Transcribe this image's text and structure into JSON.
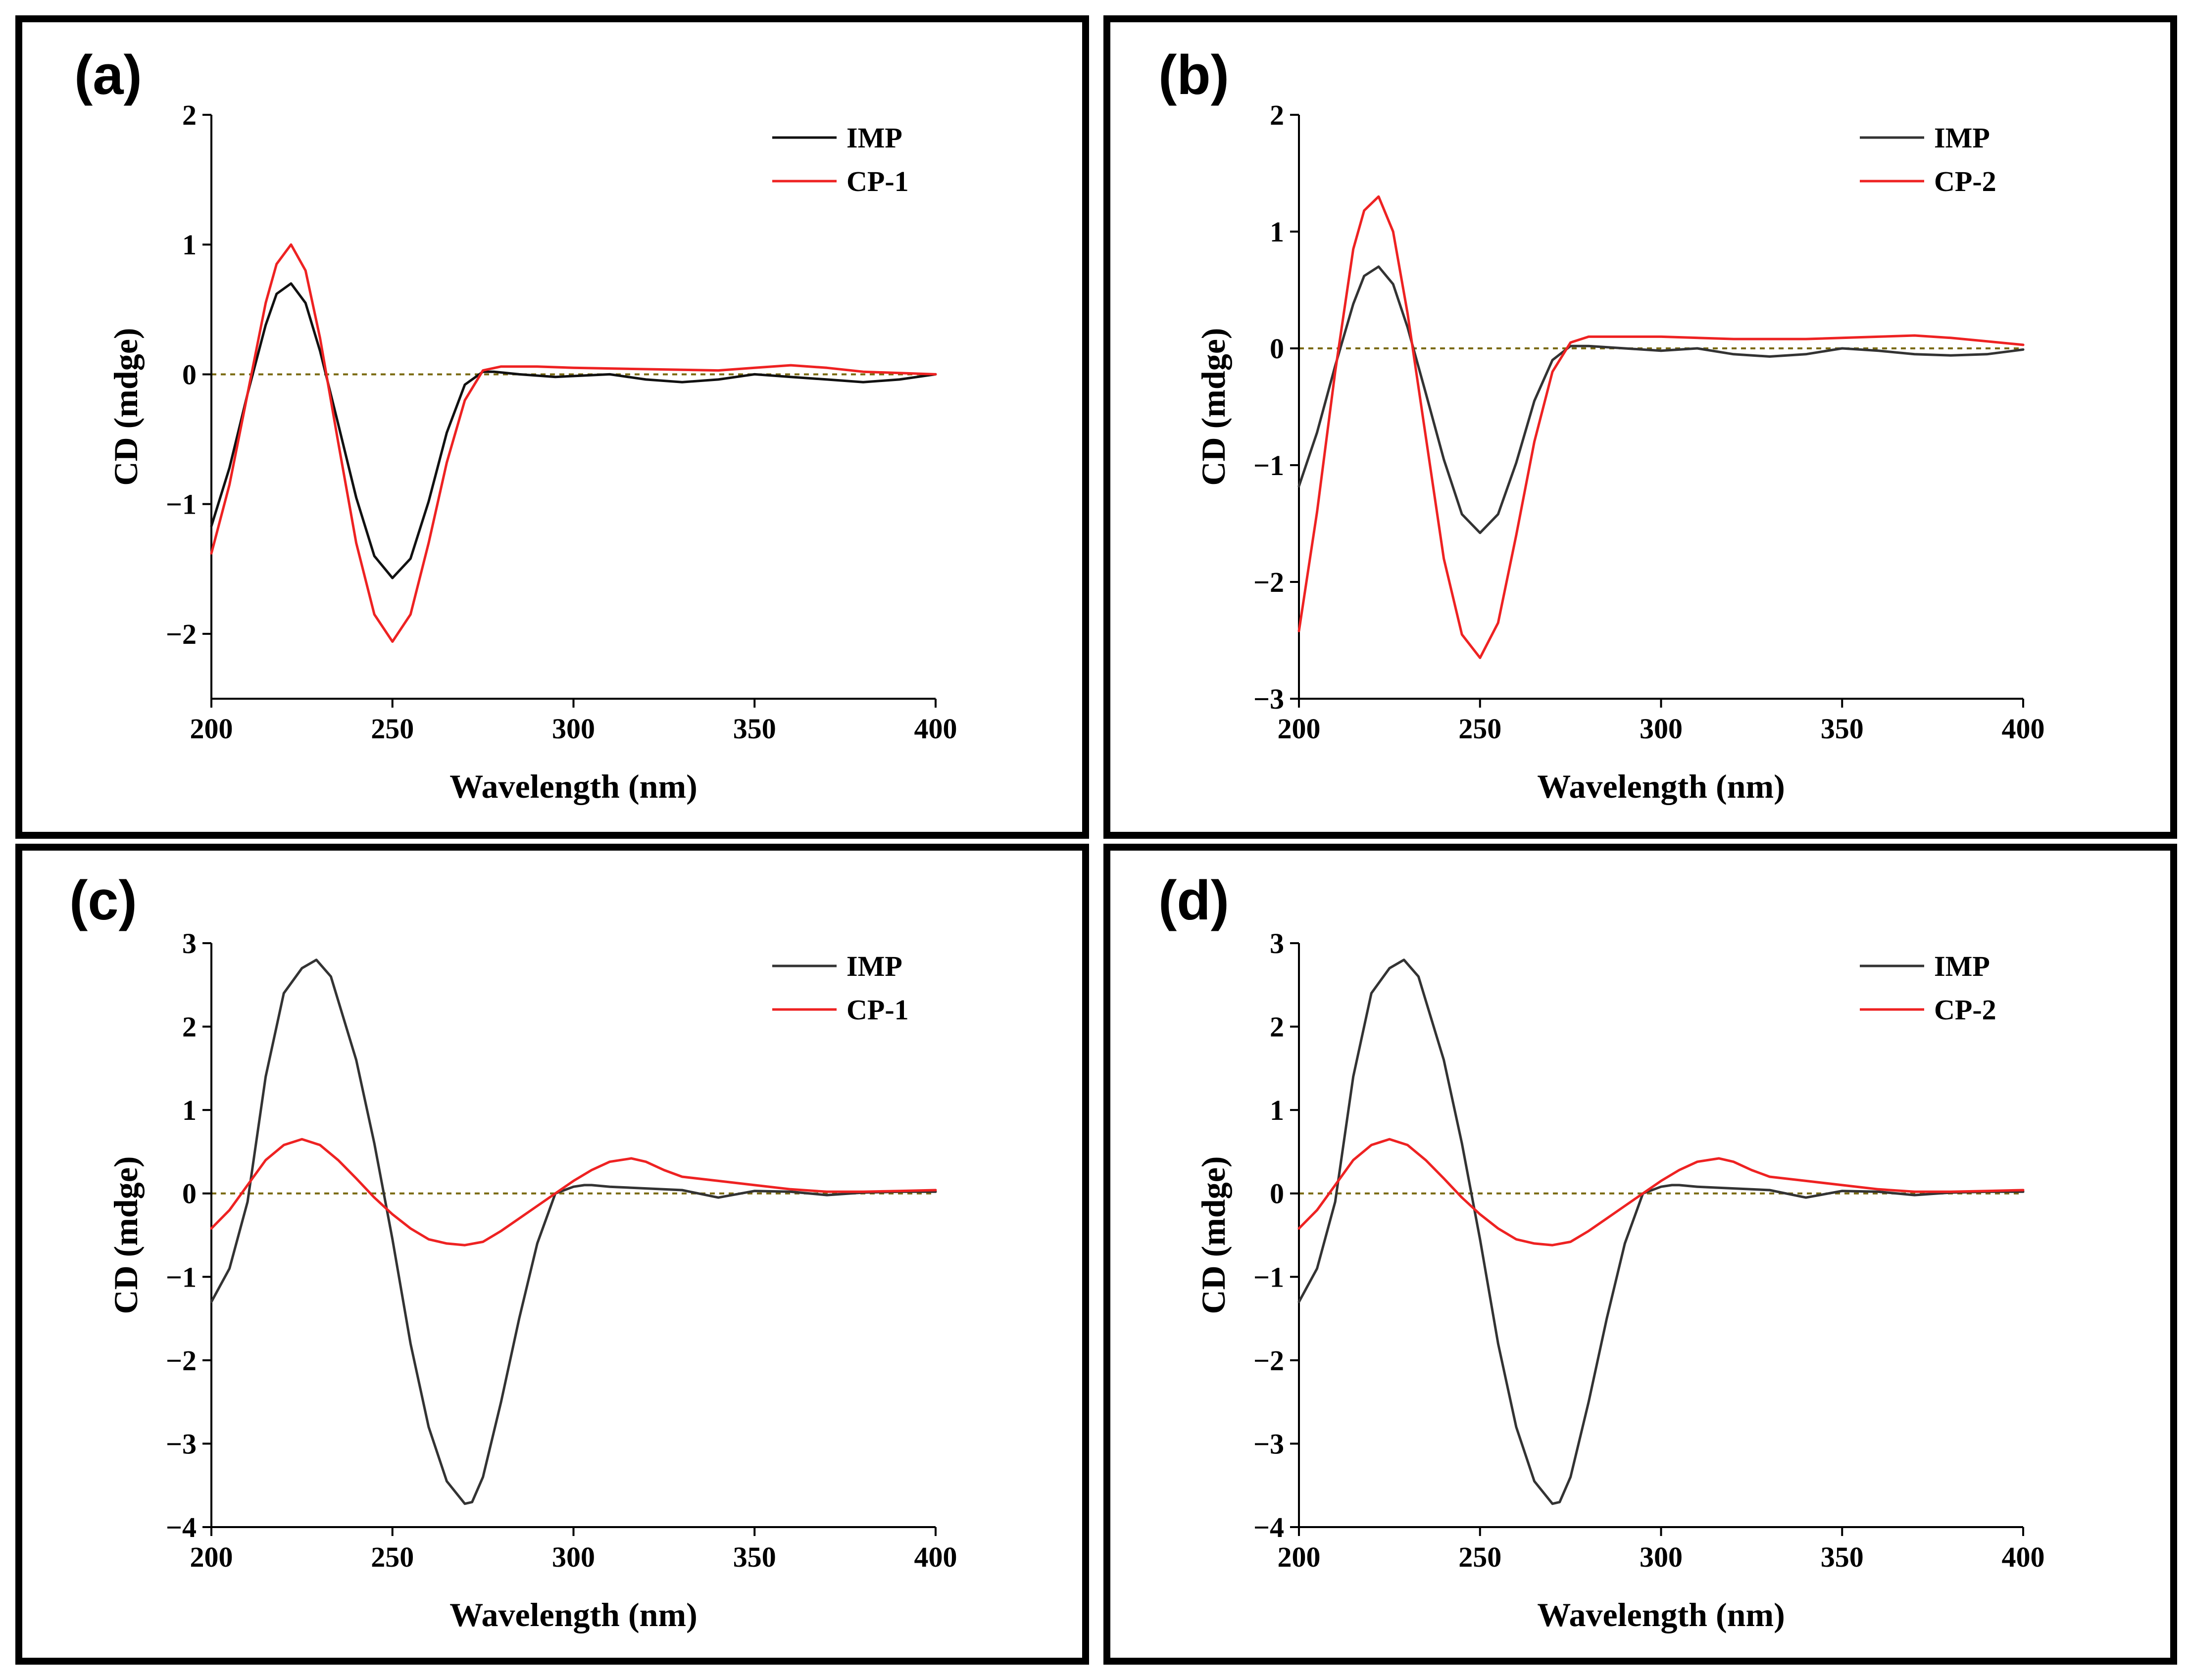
{
  "chart_data": [
    {
      "panel": "(a)",
      "type": "line",
      "xlabel": "Wavelength (nm)",
      "ylabel": "CD (mdge)",
      "xlim": [
        200,
        400
      ],
      "ylim": [
        -2.5,
        2
      ],
      "xticks": [
        "200",
        "250",
        "300",
        "350",
        "400"
      ],
      "yticks": [
        "2",
        "1",
        "0",
        "−1",
        "−2"
      ],
      "ytick_values": [
        2,
        1,
        0,
        -1,
        -2
      ],
      "xtick_values": [
        200,
        250,
        300,
        350,
        400
      ],
      "legend_position": "top-right",
      "reference_line": 0,
      "series": [
        {
          "name": "IMP",
          "color": "#111111",
          "x": [
            200,
            205,
            210,
            215,
            218,
            222,
            226,
            230,
            235,
            240,
            245,
            250,
            255,
            260,
            265,
            270,
            275,
            278,
            285,
            295,
            310,
            320,
            330,
            340,
            350,
            360,
            370,
            380,
            390,
            400
          ],
          "y": [
            -1.17,
            -0.72,
            -0.15,
            0.38,
            0.62,
            0.7,
            0.55,
            0.18,
            -0.38,
            -0.95,
            -1.4,
            -1.57,
            -1.42,
            -0.98,
            -0.45,
            -0.08,
            0.02,
            0.02,
            0.0,
            -0.02,
            0.0,
            -0.04,
            -0.06,
            -0.04,
            0.0,
            -0.02,
            -0.04,
            -0.06,
            -0.04,
            0.0
          ]
        },
        {
          "name": "CP-1",
          "color": "#ee2222",
          "x": [
            200,
            205,
            210,
            215,
            218,
            222,
            226,
            230,
            235,
            240,
            245,
            250,
            255,
            260,
            265,
            270,
            275,
            280,
            290,
            300,
            320,
            340,
            350,
            360,
            370,
            380,
            390,
            400
          ],
          "y": [
            -1.38,
            -0.85,
            -0.15,
            0.55,
            0.85,
            1.0,
            0.8,
            0.28,
            -0.52,
            -1.3,
            -1.85,
            -2.06,
            -1.85,
            -1.3,
            -0.68,
            -0.2,
            0.03,
            0.06,
            0.06,
            0.05,
            0.04,
            0.03,
            0.05,
            0.07,
            0.05,
            0.02,
            0.01,
            0.0
          ]
        }
      ]
    },
    {
      "panel": "(b)",
      "type": "line",
      "xlabel": "Wavelength (nm)",
      "ylabel": "CD (mdge)",
      "xlim": [
        200,
        400
      ],
      "ylim": [
        -3,
        2
      ],
      "xticks": [
        "200",
        "250",
        "300",
        "350",
        "400"
      ],
      "yticks": [
        "2",
        "1",
        "0",
        "−1",
        "−2",
        "−3"
      ],
      "ytick_values": [
        2,
        1,
        0,
        -1,
        -2,
        -3
      ],
      "xtick_values": [
        200,
        250,
        300,
        350,
        400
      ],
      "legend_position": "top-right",
      "reference_line": 0,
      "series": [
        {
          "name": "IMP",
          "color": "#333333",
          "x": [
            200,
            205,
            210,
            215,
            218,
            222,
            226,
            230,
            235,
            240,
            245,
            250,
            255,
            260,
            265,
            270,
            275,
            280,
            290,
            300,
            310,
            320,
            330,
            340,
            350,
            360,
            370,
            380,
            390,
            400
          ],
          "y": [
            -1.18,
            -0.72,
            -0.15,
            0.38,
            0.62,
            0.7,
            0.55,
            0.18,
            -0.38,
            -0.95,
            -1.42,
            -1.58,
            -1.42,
            -0.98,
            -0.45,
            -0.1,
            0.02,
            0.02,
            0.0,
            -0.02,
            0.0,
            -0.05,
            -0.07,
            -0.05,
            0.0,
            -0.02,
            -0.05,
            -0.06,
            -0.05,
            -0.01
          ]
        },
        {
          "name": "CP-2",
          "color": "#ee2222",
          "x": [
            200,
            205,
            210,
            215,
            218,
            222,
            226,
            230,
            235,
            240,
            245,
            250,
            255,
            260,
            265,
            270,
            275,
            280,
            290,
            300,
            320,
            340,
            350,
            360,
            370,
            380,
            390,
            400
          ],
          "y": [
            -2.42,
            -1.4,
            -0.2,
            0.85,
            1.18,
            1.3,
            1.0,
            0.3,
            -0.75,
            -1.8,
            -2.45,
            -2.65,
            -2.35,
            -1.6,
            -0.8,
            -0.2,
            0.05,
            0.1,
            0.1,
            0.1,
            0.08,
            0.08,
            0.09,
            0.1,
            0.11,
            0.09,
            0.06,
            0.03
          ]
        }
      ]
    },
    {
      "panel": "(c)",
      "type": "line",
      "xlabel": "Wavelength (nm)",
      "ylabel": "CD (mdge)",
      "xlim": [
        200,
        400
      ],
      "ylim": [
        -4,
        3
      ],
      "xticks": [
        "200",
        "250",
        "300",
        "350",
        "400"
      ],
      "yticks": [
        "3",
        "2",
        "1",
        "0",
        "−1",
        "−2",
        "−3",
        "−4"
      ],
      "ytick_values": [
        3,
        2,
        1,
        0,
        -1,
        -2,
        -3,
        -4
      ],
      "xtick_values": [
        200,
        250,
        300,
        350,
        400
      ],
      "legend_position": "top-right",
      "reference_line": 0,
      "series": [
        {
          "name": "IMP",
          "color": "#333333",
          "x": [
            200,
            205,
            210,
            215,
            220,
            225,
            229,
            233,
            240,
            245,
            250,
            255,
            260,
            265,
            270,
            272,
            275,
            280,
            285,
            290,
            295,
            300,
            303,
            305,
            310,
            320,
            330,
            340,
            350,
            360,
            370,
            380,
            390,
            400
          ],
          "y": [
            -1.3,
            -0.9,
            -0.1,
            1.4,
            2.4,
            2.7,
            2.8,
            2.6,
            1.6,
            0.6,
            -0.55,
            -1.8,
            -2.8,
            -3.45,
            -3.72,
            -3.7,
            -3.4,
            -2.5,
            -1.5,
            -0.6,
            0.0,
            0.08,
            0.1,
            0.1,
            0.08,
            0.06,
            0.04,
            -0.05,
            0.03,
            0.02,
            -0.02,
            0.01,
            0.02,
            0.02
          ]
        },
        {
          "name": "CP-1",
          "color": "#ee2222",
          "x": [
            200,
            205,
            210,
            215,
            220,
            225,
            230,
            235,
            240,
            245,
            250,
            255,
            260,
            265,
            270,
            275,
            280,
            285,
            290,
            295,
            300,
            305,
            310,
            316,
            320,
            325,
            330,
            340,
            350,
            360,
            370,
            380,
            390,
            400
          ],
          "y": [
            -0.42,
            -0.2,
            0.1,
            0.4,
            0.58,
            0.65,
            0.58,
            0.4,
            0.18,
            -0.05,
            -0.25,
            -0.42,
            -0.55,
            -0.6,
            -0.62,
            -0.58,
            -0.45,
            -0.3,
            -0.15,
            0.0,
            0.15,
            0.28,
            0.38,
            0.42,
            0.38,
            0.28,
            0.2,
            0.15,
            0.1,
            0.05,
            0.02,
            0.02,
            0.03,
            0.04
          ]
        }
      ]
    },
    {
      "panel": "(d)",
      "type": "line",
      "xlabel": "Wavelength (nm)",
      "ylabel": "CD (mdge)",
      "xlim": [
        200,
        400
      ],
      "ylim": [
        -4,
        3
      ],
      "xticks": [
        "200",
        "250",
        "300",
        "350",
        "400"
      ],
      "yticks": [
        "3",
        "2",
        "1",
        "0",
        "−1",
        "−2",
        "−3",
        "−4"
      ],
      "ytick_values": [
        3,
        2,
        1,
        0,
        -1,
        -2,
        -3,
        -4
      ],
      "xtick_values": [
        200,
        250,
        300,
        350,
        400
      ],
      "legend_position": "top-right",
      "reference_line": 0,
      "series": [
        {
          "name": "IMP",
          "color": "#333333",
          "x": [
            200,
            205,
            210,
            215,
            220,
            225,
            229,
            233,
            240,
            245,
            250,
            255,
            260,
            265,
            270,
            272,
            275,
            280,
            285,
            290,
            295,
            300,
            303,
            305,
            310,
            320,
            330,
            340,
            350,
            360,
            370,
            380,
            390,
            400
          ],
          "y": [
            -1.3,
            -0.9,
            -0.1,
            1.4,
            2.4,
            2.7,
            2.8,
            2.6,
            1.6,
            0.6,
            -0.55,
            -1.8,
            -2.8,
            -3.45,
            -3.72,
            -3.7,
            -3.4,
            -2.5,
            -1.5,
            -0.6,
            0.0,
            0.08,
            0.1,
            0.1,
            0.08,
            0.06,
            0.04,
            -0.05,
            0.03,
            0.02,
            -0.02,
            0.01,
            0.02,
            0.02
          ]
        },
        {
          "name": "CP-2",
          "color": "#ee2222",
          "x": [
            200,
            205,
            210,
            215,
            220,
            225,
            230,
            235,
            240,
            245,
            250,
            255,
            260,
            265,
            270,
            275,
            280,
            285,
            290,
            295,
            300,
            305,
            310,
            316,
            320,
            325,
            330,
            340,
            350,
            360,
            370,
            380,
            390,
            400
          ],
          "y": [
            -0.42,
            -0.2,
            0.1,
            0.4,
            0.58,
            0.65,
            0.58,
            0.4,
            0.18,
            -0.05,
            -0.25,
            -0.42,
            -0.55,
            -0.6,
            -0.62,
            -0.58,
            -0.45,
            -0.3,
            -0.15,
            0.0,
            0.15,
            0.28,
            0.38,
            0.42,
            0.38,
            0.28,
            0.2,
            0.15,
            0.1,
            0.05,
            0.02,
            0.02,
            0.03,
            0.04
          ]
        }
      ]
    }
  ]
}
